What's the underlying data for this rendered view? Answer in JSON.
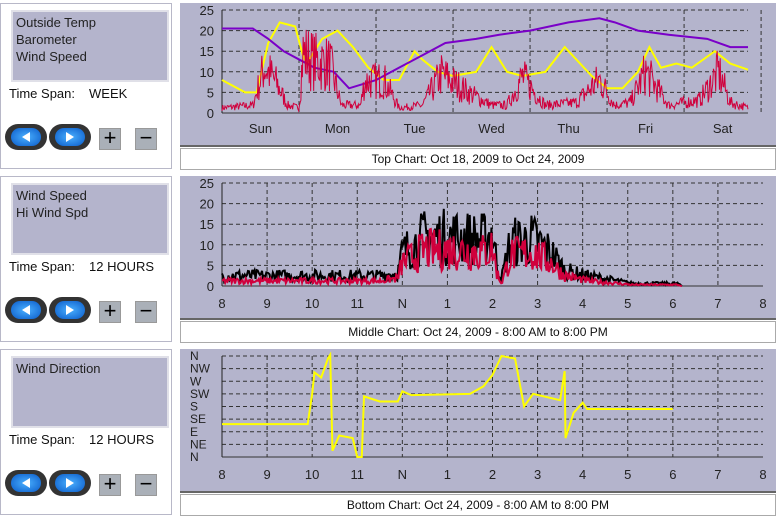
{
  "panels": [
    {
      "items": [
        "Outside Temp",
        "Barometer",
        "Wind Speed"
      ],
      "span_label": "Time Span:",
      "span_value": "WEEK",
      "caption": "Top Chart:  Oct 18, 2009  to  Oct 24, 2009"
    },
    {
      "items": [
        "Wind Speed",
        "Hi Wind Spd"
      ],
      "span_label": "Time Span:",
      "span_value": "12 HOURS",
      "caption": "Middle Chart:  Oct 24, 2009 - 8:00 AM  to  8:00 PM"
    },
    {
      "items": [
        "Wind Direction"
      ],
      "span_label": "Time Span:",
      "span_value": "12 HOURS",
      "caption": "Bottom Chart:  Oct 24, 2009 - 8:00 AM  to  8:00 PM"
    }
  ],
  "buttons": {
    "plus": "+",
    "minus": "−"
  },
  "chart_data": [
    {
      "type": "line",
      "title": "Top Chart",
      "ylim": [
        0,
        25
      ],
      "yticks": [
        "25",
        "20",
        "15",
        "10",
        "5",
        "0"
      ],
      "xlim": [
        0,
        6.83
      ],
      "xticks": [
        "Sun",
        "Mon",
        "Tue",
        "Wed",
        "Thu",
        "Fri",
        "Sat"
      ],
      "series": [
        {
          "name": "Outside Temp",
          "color": "#ffff00",
          "points": [
            [
              0,
              8
            ],
            [
              0.3,
              5
            ],
            [
              0.45,
              5
            ],
            [
              0.6,
              17
            ],
            [
              0.75,
              22
            ],
            [
              0.95,
              21
            ],
            [
              1.05,
              14
            ],
            [
              1.1,
              12
            ],
            [
              1.3,
              18
            ],
            [
              1.5,
              20
            ],
            [
              1.7,
              16
            ],
            [
              1.9,
              11
            ],
            [
              2.1,
              8
            ],
            [
              2.3,
              8
            ],
            [
              2.5,
              15
            ],
            [
              2.6,
              13
            ],
            [
              2.8,
              10
            ],
            [
              3,
              9
            ],
            [
              3.3,
              10
            ],
            [
              3.5,
              16
            ],
            [
              3.7,
              10
            ],
            [
              3.9,
              9
            ],
            [
              4.2,
              10
            ],
            [
              4.45,
              16
            ],
            [
              4.6,
              13
            ],
            [
              4.8,
              9
            ],
            [
              5,
              6
            ],
            [
              5.2,
              6
            ],
            [
              5.4,
              10
            ],
            [
              5.55,
              16
            ],
            [
              5.7,
              11
            ],
            [
              5.9,
              12
            ],
            [
              6.1,
              11
            ],
            [
              6.4,
              15
            ],
            [
              6.6,
              12
            ],
            [
              6.83,
              10.5
            ]
          ]
        },
        {
          "name": "Barometer",
          "color": "#7a00c8",
          "points": [
            [
              0,
              20.5
            ],
            [
              0.4,
              20.5
            ],
            [
              0.6,
              18
            ],
            [
              0.8,
              15
            ],
            [
              1,
              13
            ],
            [
              1.2,
              11
            ],
            [
              1.45,
              10
            ],
            [
              1.65,
              6
            ],
            [
              2,
              8
            ],
            [
              2.3,
              11
            ],
            [
              2.6,
              14
            ],
            [
              2.9,
              17
            ],
            [
              3.3,
              18
            ],
            [
              3.6,
              19
            ],
            [
              4,
              20
            ],
            [
              4.5,
              22
            ],
            [
              4.9,
              23
            ],
            [
              5.1,
              22
            ],
            [
              5.4,
              20
            ],
            [
              5.8,
              19
            ],
            [
              6.3,
              18
            ],
            [
              6.6,
              16
            ],
            [
              6.83,
              16
            ]
          ]
        },
        {
          "name": "Wind Speed",
          "color": "#d0003c",
          "noisy": true,
          "points": [
            [
              0,
              2
            ],
            [
              0.4,
              3
            ],
            [
              0.55,
              18
            ],
            [
              0.7,
              12
            ],
            [
              0.85,
              3
            ],
            [
              1,
              2
            ],
            [
              1.05,
              23
            ],
            [
              1.2,
              20
            ],
            [
              1.4,
              19
            ],
            [
              1.55,
              3
            ],
            [
              1.8,
              3
            ],
            [
              1.85,
              12
            ],
            [
              2.1,
              13
            ],
            [
              2.3,
              2
            ],
            [
              2.6,
              3
            ],
            [
              2.85,
              15
            ],
            [
              3.2,
              8
            ],
            [
              3.5,
              3
            ],
            [
              3.7,
              3
            ],
            [
              3.9,
              14
            ],
            [
              4.2,
              3
            ],
            [
              4.6,
              4
            ],
            [
              4.9,
              13
            ],
            [
              5.1,
              3
            ],
            [
              5.3,
              4
            ],
            [
              5.5,
              16
            ],
            [
              5.8,
              3
            ],
            [
              6.2,
              5
            ],
            [
              6.45,
              16
            ],
            [
              6.6,
              4
            ],
            [
              6.83,
              2
            ]
          ]
        }
      ]
    },
    {
      "type": "line",
      "title": "Middle Chart",
      "ylim": [
        0,
        25
      ],
      "yticks": [
        "25",
        "20",
        "15",
        "10",
        "5",
        "0"
      ],
      "xlim": [
        8,
        20
      ],
      "xticks": [
        "8",
        "9",
        "10",
        "11",
        "N",
        "1",
        "2",
        "3",
        "4",
        "5",
        "6",
        "7",
        "8"
      ],
      "series": [
        {
          "name": "Hi Wind Spd",
          "color": "#000000",
          "noisy": true,
          "points": [
            [
              8,
              4
            ],
            [
              11.5,
              4
            ],
            [
              11.9,
              5
            ],
            [
              12,
              13
            ],
            [
              12.5,
              19
            ],
            [
              13.2,
              19
            ],
            [
              13.8,
              18
            ],
            [
              14,
              21
            ],
            [
              14.1,
              8
            ],
            [
              14.2,
              3
            ],
            [
              14.4,
              17
            ],
            [
              14.9,
              18
            ],
            [
              15.3,
              13
            ],
            [
              15.6,
              6
            ],
            [
              16.1,
              4
            ],
            [
              17.1,
              1
            ],
            [
              18.1,
              1
            ],
            [
              18.2,
              0
            ]
          ]
        },
        {
          "name": "Wind Speed",
          "color": "#d0003c",
          "noisy": true,
          "points": [
            [
              8,
              2
            ],
            [
              11.5,
              2
            ],
            [
              11.9,
              3
            ],
            [
              12,
              9
            ],
            [
              12.5,
              14
            ],
            [
              13.2,
              14
            ],
            [
              13.8,
              13
            ],
            [
              14,
              15
            ],
            [
              14.1,
              5
            ],
            [
              14.2,
              1
            ],
            [
              14.4,
              12
            ],
            [
              14.9,
              13
            ],
            [
              15.3,
              9
            ],
            [
              15.6,
              4
            ],
            [
              16.1,
              2
            ],
            [
              17.1,
              0.5
            ],
            [
              18.1,
              0.5
            ],
            [
              18.2,
              0
            ]
          ]
        }
      ]
    },
    {
      "type": "line",
      "title": "Bottom Chart",
      "yticks": [
        "N",
        "NW",
        "W",
        "SW",
        "S",
        "SE",
        "E",
        "NE",
        "N"
      ],
      "ylim": [
        0,
        8
      ],
      "xlim": [
        8,
        20
      ],
      "xticks": [
        "8",
        "9",
        "10",
        "11",
        "N",
        "1",
        "2",
        "3",
        "4",
        "5",
        "6",
        "7",
        "8"
      ],
      "series": [
        {
          "name": "Wind Direction",
          "color": "#ffff00",
          "points": [
            [
              8,
              2.6
            ],
            [
              9.9,
              2.6
            ],
            [
              10,
              5
            ],
            [
              10.05,
              6.7
            ],
            [
              10.2,
              6.3
            ],
            [
              10.35,
              7.8
            ],
            [
              10.4,
              8.1
            ],
            [
              10.45,
              0.5
            ],
            [
              10.6,
              1.7
            ],
            [
              10.9,
              1.5
            ],
            [
              11,
              0
            ],
            [
              11.1,
              0
            ],
            [
              11.15,
              4.8
            ],
            [
              11.5,
              4.4
            ],
            [
              11.9,
              4.4
            ],
            [
              12,
              5.2
            ],
            [
              12.2,
              4.9
            ],
            [
              13.5,
              5
            ],
            [
              13.8,
              5.6
            ],
            [
              14,
              6.5
            ],
            [
              14.2,
              8
            ],
            [
              14.5,
              7.8
            ],
            [
              14.7,
              4
            ],
            [
              14.9,
              5
            ],
            [
              15.5,
              4.5
            ],
            [
              15.6,
              6.8
            ],
            [
              15.62,
              1.5
            ],
            [
              15.8,
              3.5
            ],
            [
              16,
              4.3
            ],
            [
              16.1,
              3.8
            ],
            [
              18,
              3.8
            ]
          ]
        }
      ]
    }
  ]
}
